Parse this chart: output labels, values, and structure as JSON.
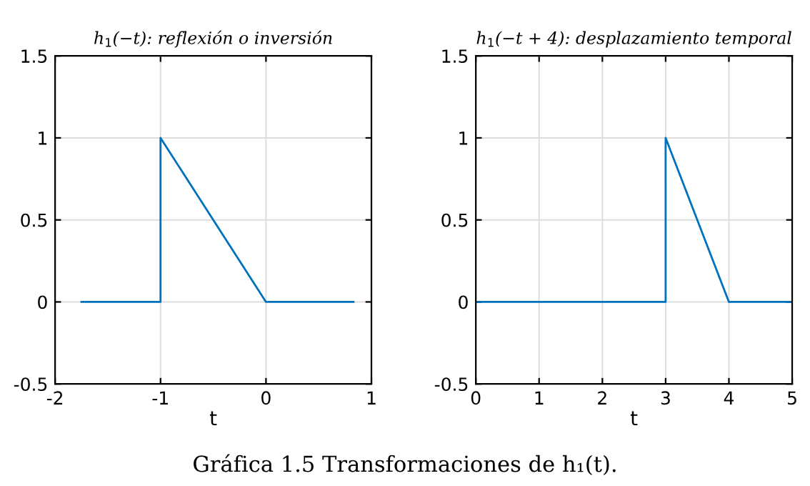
{
  "chart_data": [
    {
      "type": "line",
      "title": "h$_{1}$(−t): reflexión o inversión",
      "xlabel": "t",
      "x": [
        -1.75,
        -1,
        -1,
        0,
        0.83
      ],
      "series": [
        {
          "color": "#0072bd",
          "values": [
            0,
            0,
            1,
            0,
            0
          ]
        }
      ],
      "xlim": [
        -2,
        1
      ],
      "xticks": [
        -2,
        -1,
        0,
        1
      ],
      "ylim": [
        -0.5,
        1.5
      ],
      "yticks": [
        -0.5,
        0,
        0.5,
        1,
        1.5
      ],
      "grid": true
    },
    {
      "type": "line",
      "title": "h$_{1}$(−t + 4): desplazamiento temporal",
      "xlabel": "t",
      "x": [
        0,
        3,
        3,
        4,
        5
      ],
      "series": [
        {
          "color": "#0072bd",
          "values": [
            0,
            0,
            1,
            0,
            0
          ]
        }
      ],
      "xlim": [
        0,
        5
      ],
      "xticks": [
        0,
        1,
        2,
        3,
        4,
        5
      ],
      "ylim": [
        -0.5,
        1.5
      ],
      "yticks": [
        -0.5,
        0,
        0.5,
        1,
        1.5
      ],
      "grid": true,
      "annotations": [
        "Gráfica 1.5 Transformaciones de h₁(t)."
      ]
    }
  ]
}
